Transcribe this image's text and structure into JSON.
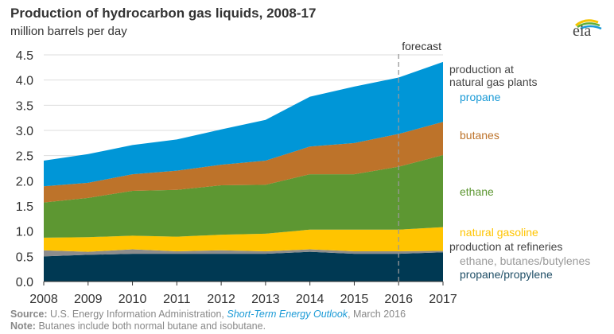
{
  "title": "Production of hydrocarbon gas liquids, 2008-17",
  "subtitle": "million barrels per day",
  "logo_text": "eia",
  "chart_data": {
    "type": "area",
    "stacked": true,
    "categories": [
      2008,
      2009,
      2010,
      2011,
      2012,
      2013,
      2014,
      2015,
      2016,
      2017
    ],
    "ylim": [
      0,
      4.5
    ],
    "yticks": [
      "0.0",
      "0.5",
      "1.0",
      "1.5",
      "2.0",
      "2.5",
      "3.0",
      "3.5",
      "4.0",
      "4.5"
    ],
    "xticks": [
      "2008",
      "2009",
      "2010",
      "2011",
      "2012",
      "2013",
      "2014",
      "2015",
      "2016",
      "2017"
    ],
    "grid": true,
    "forecast_start": 2016,
    "forecast_label": "forecast",
    "group_labels": {
      "plants": "production at\nnatural gas plants",
      "refineries": "production at refineries"
    },
    "series": [
      {
        "name": "propane/propylene",
        "color": "#003953",
        "values": [
          0.5,
          0.53,
          0.55,
          0.55,
          0.55,
          0.55,
          0.59,
          0.55,
          0.55,
          0.58
        ]
      },
      {
        "name": "ethane, butanes/butylenes",
        "color": "#8c8c8c",
        "values": [
          0.12,
          0.06,
          0.09,
          0.05,
          0.07,
          0.05,
          0.05,
          0.05,
          0.05,
          0.03
        ]
      },
      {
        "name": "natural gasoline",
        "color": "#ffc400",
        "values": [
          0.25,
          0.29,
          0.27,
          0.29,
          0.31,
          0.35,
          0.39,
          0.43,
          0.43,
          0.47
        ]
      },
      {
        "name": "ethane",
        "color": "#5d9732",
        "values": [
          0.7,
          0.78,
          0.89,
          0.93,
          0.98,
          0.97,
          1.1,
          1.1,
          1.25,
          1.43
        ]
      },
      {
        "name": "butanes",
        "color": "#bd732a",
        "values": [
          0.32,
          0.3,
          0.33,
          0.38,
          0.41,
          0.48,
          0.55,
          0.62,
          0.65,
          0.66
        ]
      },
      {
        "name": "propane",
        "color": "#0096d7",
        "values": [
          0.51,
          0.57,
          0.58,
          0.62,
          0.7,
          0.81,
          0.99,
          1.12,
          1.12,
          1.19
        ]
      }
    ]
  },
  "footer": {
    "source_label": "Source:",
    "source_text": "U.S. Energy Information Administration,",
    "source_link": "Short-Term Energy Outlook",
    "source_date": ", March 2016",
    "note_label": "Note:",
    "note_text": "Butanes include both normal butane and isobutane."
  }
}
